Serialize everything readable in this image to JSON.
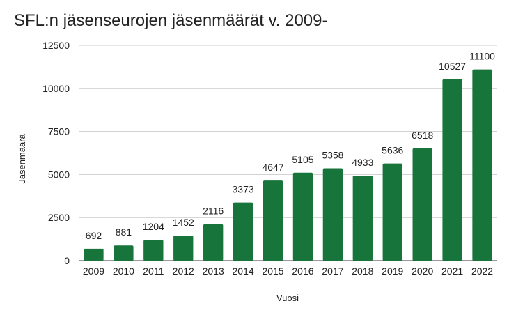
{
  "chart_data": {
    "type": "bar",
    "title": "SFL:n jäsenseurojen jäsenmäärät v. 2009-",
    "xlabel": "Vuosi",
    "ylabel": "Jäsenmäärä",
    "categories": [
      "2009",
      "2010",
      "2011",
      "2012",
      "2013",
      "2014",
      "2015",
      "2016",
      "2017",
      "2018",
      "2019",
      "2020",
      "2021",
      "2022"
    ],
    "values": [
      692,
      881,
      1204,
      1452,
      2116,
      3373,
      4647,
      5105,
      5358,
      4933,
      5636,
      6518,
      10527,
      11100
    ],
    "ylim": [
      0,
      12500
    ],
    "yticks": [
      0,
      2500,
      5000,
      7500,
      10000,
      12500
    ],
    "grid": true,
    "legend": "none",
    "bar_color": "#17743a",
    "data_labels": true
  }
}
